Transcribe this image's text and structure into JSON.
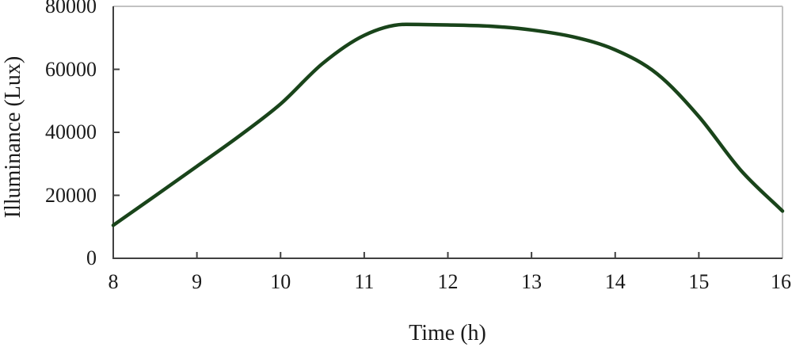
{
  "colors": {
    "line": "#19441a",
    "axis_dark": "#404040",
    "border_light": "#c2c2c2",
    "text": "#1a1a1a",
    "background": "#ffffff"
  },
  "chart_data": {
    "type": "line",
    "xlabel": "Time (h)",
    "ylabel": "Illuminance (Lux)",
    "xlim": [
      8,
      16
    ],
    "ylim": [
      0,
      80000
    ],
    "grid": false,
    "legend": "none",
    "x_tick_values": [
      8,
      9,
      10,
      11,
      12,
      13,
      14,
      15,
      16
    ],
    "x_tick_labels": [
      "8",
      "9",
      "10",
      "11",
      "12",
      "13",
      "14",
      "15",
      "16"
    ],
    "y_tick_values": [
      0,
      20000,
      40000,
      60000,
      80000
    ],
    "y_tick_labels": [
      "0",
      "20000",
      "40000",
      "60000",
      "80000"
    ],
    "series": [
      {
        "name": "Illuminance",
        "color": "#19441a",
        "x": [
          8,
          8.5,
          9,
          9.5,
          10,
          10.5,
          11,
          11.5,
          12,
          12.5,
          13,
          13.5,
          14,
          14.5,
          15,
          15.5,
          16
        ],
        "y": [
          10500,
          19800,
          29200,
          38700,
          49000,
          61800,
          70800,
          74300,
          74100,
          73700,
          72500,
          70300,
          66200,
          58600,
          45000,
          28000,
          15000
        ]
      }
    ]
  }
}
